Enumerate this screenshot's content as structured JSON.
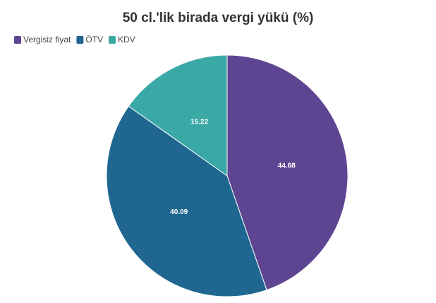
{
  "chart_data": {
    "type": "pie",
    "title": "50 cl.'lik birada vergi yükü (%)",
    "categories": [
      "Vergisiz fiyat",
      "ÖTV",
      "KDV"
    ],
    "values": [
      44.68,
      40.09,
      15.22
    ],
    "colors": [
      "#5e4591",
      "#1f6791",
      "#3aa8a5"
    ],
    "legend": "top-left"
  }
}
